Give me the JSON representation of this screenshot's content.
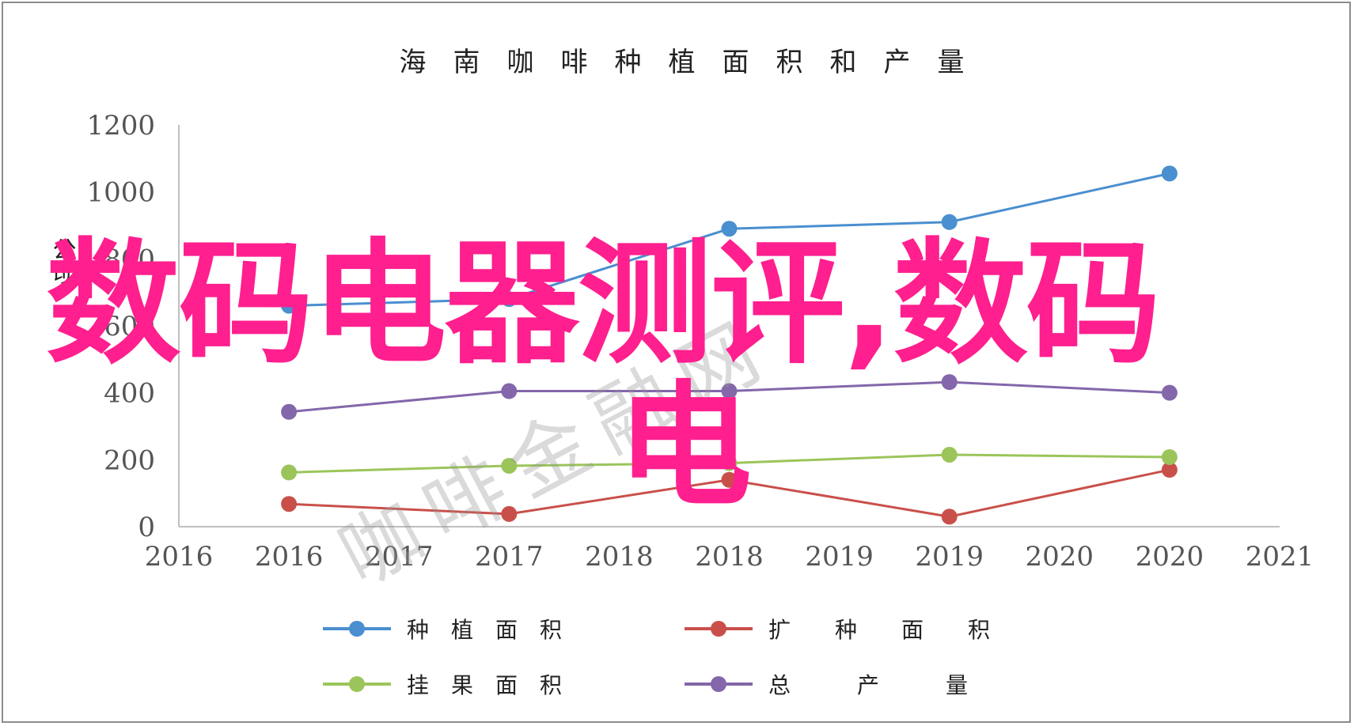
{
  "chart_data": {
    "type": "line",
    "title": "海　南　咖　啡　种　植　面　积　和　产　量",
    "ylabel": "公顷",
    "xlabel": "",
    "ylim": [
      0,
      1200
    ],
    "yticks": [
      0,
      200,
      400,
      600,
      800,
      1000,
      1200
    ],
    "xlim": [
      2016,
      2021
    ],
    "xtick_labels": [
      "2016",
      "2016",
      "2017",
      "2017",
      "2018",
      "2018",
      "2019",
      "2019",
      "2020",
      "2020",
      "2021"
    ],
    "x": [
      2016.5,
      2017.5,
      2018.5,
      2019.5,
      2020.5
    ],
    "grid": false,
    "legend_position": "bottom",
    "series": [
      {
        "name": "种　植　面　积",
        "color": "#4a8fcf",
        "values": [
          660,
          680,
          890,
          910,
          1055
        ]
      },
      {
        "name": "扩　　种　　面　　积",
        "color": "#c9504a",
        "values": [
          68,
          38,
          140,
          30,
          170
        ]
      },
      {
        "name": "挂　果　面　积",
        "color": "#9bc55a",
        "values": [
          162,
          182,
          190,
          215,
          208
        ]
      },
      {
        "name": "总　　　产　　　量",
        "color": "#8467aa",
        "values": [
          343,
          405,
          405,
          432,
          400
        ]
      }
    ]
  },
  "overlay": {
    "line1": "数码电器测评,数码",
    "line2": "电",
    "watermark": "咖啡金融网"
  }
}
